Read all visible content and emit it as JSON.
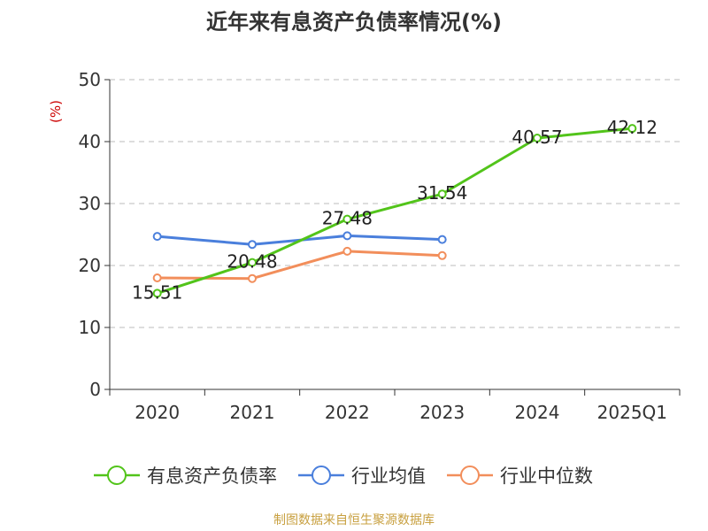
{
  "chart_data": {
    "type": "line",
    "title": "近年来有息资产负债率情况(%)",
    "ylabel": "(%)",
    "categories": [
      "2020",
      "2021",
      "2022",
      "2023",
      "2024",
      "2025Q1"
    ],
    "ylim": [
      0,
      50
    ],
    "yticks": [
      "0",
      "10",
      "20",
      "30",
      "40",
      "50"
    ],
    "grid": true,
    "legend_position": "bottom",
    "series": [
      {
        "name": "有息资产负债率",
        "color": "#52c41a",
        "values": [
          15.51,
          20.48,
          27.48,
          31.54,
          40.57,
          42.12
        ],
        "labels": [
          "15.51",
          "20.48",
          "27.48",
          "31.54",
          "40.57",
          "42.12"
        ]
      },
      {
        "name": "行业均值",
        "color": "#4a7fdc",
        "values": [
          24.7,
          23.4,
          24.8,
          24.2,
          null,
          null
        ]
      },
      {
        "name": "行业中位数",
        "color": "#f28e5b",
        "values": [
          18.0,
          17.9,
          22.3,
          21.6,
          null,
          null
        ]
      }
    ]
  },
  "source": "制图数据来自恒生聚源数据库"
}
